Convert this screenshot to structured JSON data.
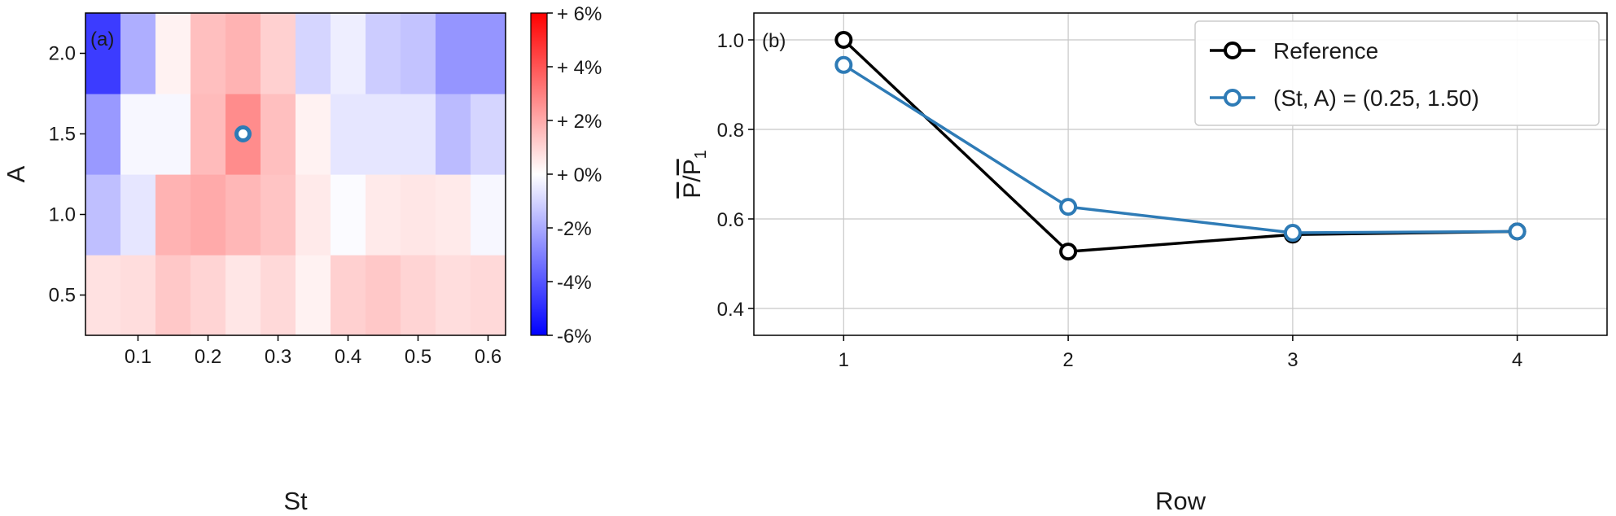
{
  "chart_data": [
    {
      "type": "heatmap",
      "panel_label": "(a)",
      "xlabel": "St",
      "ylabel": "A",
      "x_centers": [
        0.05,
        0.1,
        0.15,
        0.2,
        0.25,
        0.3,
        0.35,
        0.4,
        0.45,
        0.5,
        0.55,
        0.6
      ],
      "y_centers": [
        0.5,
        1.0,
        1.5,
        2.0
      ],
      "xlim": [
        0.025,
        0.625
      ],
      "ylim": [
        0.25,
        2.25
      ],
      "x_ticks": [
        {
          "value": 0.1,
          "label": "0.1"
        },
        {
          "value": 0.2,
          "label": "0.2"
        },
        {
          "value": 0.3,
          "label": "0.3"
        },
        {
          "value": 0.4,
          "label": "0.4"
        },
        {
          "value": 0.5,
          "label": "0.5"
        },
        {
          "value": 0.6,
          "label": "0.6"
        }
      ],
      "y_ticks": [
        {
          "value": 0.5,
          "label": "0.5"
        },
        {
          "value": 1.0,
          "label": "1.0"
        },
        {
          "value": 1.5,
          "label": "1.5"
        },
        {
          "value": 2.0,
          "label": "2.0"
        }
      ],
      "values": [
        [
          0.7,
          0.8,
          1.3,
          1.0,
          0.6,
          0.9,
          0.3,
          1.1,
          1.3,
          1.0,
          0.8,
          0.9
        ],
        [
          -1.5,
          -0.6,
          1.8,
          2.0,
          1.7,
          1.4,
          0.5,
          -0.1,
          0.5,
          0.6,
          0.5,
          -0.2
        ],
        [
          -2.4,
          -0.2,
          -0.2,
          1.6,
          2.7,
          1.5,
          0.3,
          -0.6,
          -0.6,
          -0.6,
          -1.6,
          -1.0
        ],
        [
          -4.6,
          -1.9,
          0.3,
          1.5,
          1.8,
          1.1,
          -1.0,
          -0.4,
          -1.2,
          -1.4,
          -2.5,
          -2.5
        ]
      ],
      "colorbar": {
        "range": [
          -6,
          6
        ],
        "cmap": [
          "#0000ff",
          "#ffffff",
          "#ff0000"
        ],
        "ticks": [
          {
            "value": 6,
            "label": "+ 6%"
          },
          {
            "value": 4,
            "label": "+ 4%"
          },
          {
            "value": 2,
            "label": "+ 2%"
          },
          {
            "value": 0,
            "label": "+ 0%"
          },
          {
            "value": -2,
            "label": "-2%"
          },
          {
            "value": -4,
            "label": "-4%"
          },
          {
            "value": -6,
            "label": "-6%"
          }
        ]
      },
      "marker": {
        "x": 0.25,
        "y": 1.5,
        "color": "#2e7bb6"
      }
    },
    {
      "type": "line",
      "panel_label": "(b)",
      "xlabel": "Row",
      "ylabel": "P/P1",
      "xlim": [
        0.6,
        4.4
      ],
      "ylim": [
        0.34,
        1.06
      ],
      "grid": true,
      "legend_position": "top-right",
      "x_ticks": [
        {
          "value": 1,
          "label": "1"
        },
        {
          "value": 2,
          "label": "2"
        },
        {
          "value": 3,
          "label": "3"
        },
        {
          "value": 4,
          "label": "4"
        }
      ],
      "y_ticks": [
        {
          "value": 0.4,
          "label": "0.4"
        },
        {
          "value": 0.6,
          "label": "0.6"
        },
        {
          "value": 0.8,
          "label": "0.8"
        },
        {
          "value": 1.0,
          "label": "1.0"
        }
      ],
      "series": [
        {
          "name": "Reference",
          "color": "#000000",
          "x": [
            1,
            2,
            3,
            4
          ],
          "y": [
            1.0,
            0.527,
            0.565,
            0.572
          ]
        },
        {
          "name": "(St, A) = (0.25, 1.50)",
          "color": "#2e7bb6",
          "x": [
            1,
            2,
            3,
            4
          ],
          "y": [
            0.944,
            0.627,
            0.569,
            0.572
          ]
        }
      ]
    }
  ]
}
